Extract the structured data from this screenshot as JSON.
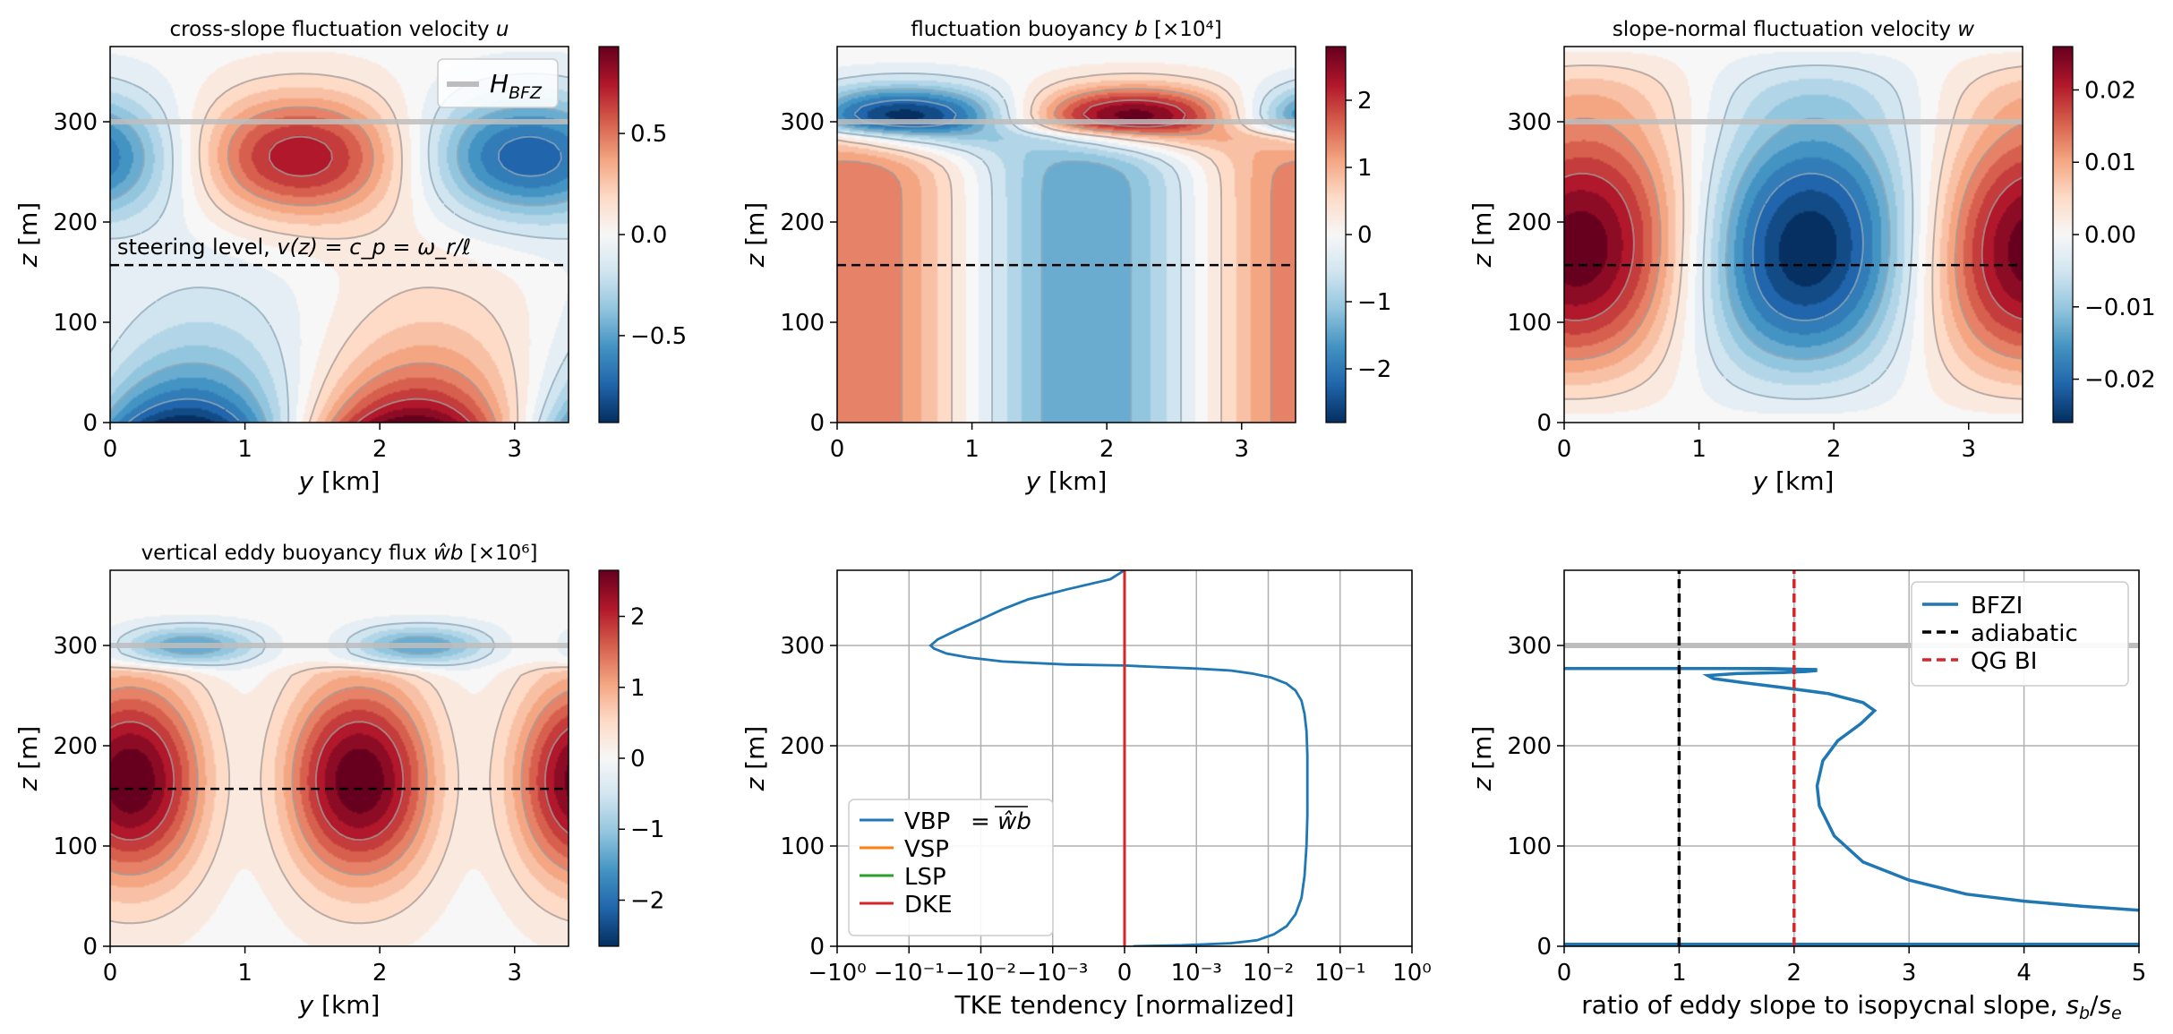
{
  "chart_data": [
    {
      "id": "u",
      "type": "heatmap",
      "title": "cross-slope fluctuation velocity u",
      "title_main": "cross-slope fluctuation velocity ",
      "title_var": "u",
      "xlabel": "y [km]",
      "ylabel": "z [m]",
      "xlim": [
        0,
        3.4
      ],
      "ylim": [
        0,
        375
      ],
      "xticks": [
        "0",
        "1",
        "2",
        "3"
      ],
      "yticks": [
        "0",
        "100",
        "200",
        "300"
      ],
      "colorbar_ticks": [
        "0.5",
        "0.0",
        "−0.5"
      ],
      "colorbar_tick_values": [
        0.5,
        0.0,
        -0.5
      ],
      "colorbar_range": [
        -0.93,
        0.93
      ],
      "colormap": "RdBu_r",
      "legend": {
        "entry": "H_BFZ",
        "label_main": "H",
        "label_sub": "BFZ",
        "placement": "top-right"
      },
      "annotation": "steering level, v(z) = c_p = ω_r/ℓ",
      "annotation_text": "steering level, ",
      "annotation_math": "v(z) = c_p = ω_r/ℓ",
      "steering_level_z": 157,
      "h_bfz_z": 300
    },
    {
      "id": "b",
      "type": "heatmap",
      "title": "fluctuation buoyancy b [×10⁴]",
      "title_main": "fluctuation buoyancy ",
      "title_var": "b",
      "title_tail": " [×10⁴]",
      "xlabel": "y [km]",
      "ylabel": "z [m]",
      "xlim": [
        0,
        3.4
      ],
      "ylim": [
        0,
        375
      ],
      "xticks": [
        "0",
        "1",
        "2",
        "3"
      ],
      "yticks": [
        "0",
        "100",
        "200",
        "300"
      ],
      "colorbar_ticks": [
        "2",
        "1",
        "0",
        "−1",
        "−2"
      ],
      "colorbar_tick_values": [
        2,
        1,
        0,
        -1,
        -2
      ],
      "colorbar_range": [
        -2.8,
        2.8
      ],
      "colormap": "RdBu_r",
      "steering_level_z": 157,
      "h_bfz_z": 300
    },
    {
      "id": "w",
      "type": "heatmap",
      "title": "slope-normal fluctuation velocity w",
      "title_main": "slope-normal fluctuation velocity ",
      "title_var": "w",
      "xlabel": "y [km]",
      "ylabel": "z [m]",
      "xlim": [
        0,
        3.4
      ],
      "ylim": [
        0,
        375
      ],
      "xticks": [
        "0",
        "1",
        "2",
        "3"
      ],
      "yticks": [
        "0",
        "100",
        "200",
        "300"
      ],
      "colorbar_ticks": [
        "0.02",
        "0.01",
        "0.00",
        "−0.01",
        "−0.02"
      ],
      "colorbar_tick_values": [
        0.02,
        0.01,
        0.0,
        -0.01,
        -0.02
      ],
      "colorbar_range": [
        -0.026,
        0.026
      ],
      "colormap": "RdBu_r",
      "steering_level_z": 157,
      "h_bfz_z": 300
    },
    {
      "id": "wb",
      "type": "heatmap",
      "title": "vertical eddy buoyancy flux ŵb [×10⁶]",
      "title_main": "vertical eddy buoyancy flux ",
      "title_var": "ŵb",
      "title_tail": " [×10⁶]",
      "xlabel": "y [km]",
      "ylabel": "z [m]",
      "xlim": [
        0,
        3.4
      ],
      "ylim": [
        0,
        375
      ],
      "xticks": [
        "0",
        "1",
        "2",
        "3"
      ],
      "yticks": [
        "0",
        "100",
        "200",
        "300"
      ],
      "colorbar_ticks": [
        "2",
        "1",
        "0",
        "−1",
        "−2"
      ],
      "colorbar_tick_values": [
        2,
        1,
        0,
        -1,
        -2
      ],
      "colorbar_range": [
        -2.65,
        2.65
      ],
      "colormap": "RdBu_r",
      "steering_level_z": 157,
      "h_bfz_z": 300
    },
    {
      "id": "tke",
      "type": "line",
      "xlabel": "TKE tendency [normalized]",
      "ylabel": "z [m]",
      "xscale": "symlog",
      "xticks": [
        "−10⁰",
        "−10⁻¹",
        "−10⁻²",
        "−10⁻³",
        "0",
        "10⁻³",
        "10⁻²",
        "10⁻¹",
        "10⁰"
      ],
      "xtick_values": [
        -1,
        -0.1,
        -0.01,
        -0.001,
        0,
        0.001,
        0.01,
        0.1,
        1
      ],
      "ylim": [
        0,
        375
      ],
      "yticks": [
        "0",
        "100",
        "200",
        "300"
      ],
      "grid": true,
      "legend": {
        "placement": "lower-left",
        "entries": [
          {
            "label": "VBP",
            "tail": "= ŵb (overbar)",
            "color": "#1f77b4"
          },
          {
            "label": "VSP",
            "color": "#ff7f0e"
          },
          {
            "label": "LSP",
            "color": "#2ca02c"
          },
          {
            "label": "DKE",
            "color": "#d62728"
          }
        ]
      },
      "series": [
        {
          "name": "VBP",
          "color": "#1f77b4",
          "points": [
            [
              0.00012,
              0
            ],
            [
              0.0008,
              1
            ],
            [
              0.003,
              3
            ],
            [
              0.007,
              6
            ],
            [
              0.012,
              12
            ],
            [
              0.018,
              20
            ],
            [
              0.024,
              32
            ],
            [
              0.029,
              48
            ],
            [
              0.032,
              70
            ],
            [
              0.034,
              100
            ],
            [
              0.035,
              130
            ],
            [
              0.035,
              160
            ],
            [
              0.035,
              190
            ],
            [
              0.034,
              215
            ],
            [
              0.032,
              232
            ],
            [
              0.029,
              245
            ],
            [
              0.024,
              255
            ],
            [
              0.018,
              262
            ],
            [
              0.011,
              268
            ],
            [
              0.006,
              272
            ],
            [
              0.003,
              275
            ],
            [
              0.001,
              277
            ],
            [
              0.0003,
              279
            ],
            [
              0,
              280
            ],
            [
              -0.0008,
              281
            ],
            [
              -0.005,
              284
            ],
            [
              -0.015,
              288
            ],
            [
              -0.03,
              292
            ],
            [
              -0.045,
              297
            ],
            [
              -0.05,
              300
            ],
            [
              -0.04,
              306
            ],
            [
              -0.022,
              315
            ],
            [
              -0.01,
              326
            ],
            [
              -0.005,
              336
            ],
            [
              -0.0022,
              346
            ],
            [
              -0.0008,
              356
            ],
            [
              -0.0002,
              366
            ],
            [
              0,
              375
            ]
          ]
        },
        {
          "name": "VSP",
          "color": "#ff7f0e",
          "points": [
            [
              0,
              0
            ],
            [
              0,
              375
            ]
          ]
        },
        {
          "name": "LSP",
          "color": "#2ca02c",
          "points": [
            [
              0,
              0
            ],
            [
              0,
              375
            ]
          ]
        },
        {
          "name": "DKE",
          "color": "#d62728",
          "points": [
            [
              0,
              0
            ],
            [
              0,
              375
            ]
          ]
        }
      ]
    },
    {
      "id": "ratio",
      "type": "line",
      "xlabel": "ratio of eddy slope to isopycnal slope, s_b/s_e",
      "xlabel_main": "ratio of eddy slope to isopycnal slope, ",
      "xlabel_math": "s_b/s_e",
      "ylabel": "z [m]",
      "xlim": [
        0,
        5
      ],
      "ylim": [
        0,
        375
      ],
      "xticks": [
        "0",
        "1",
        "2",
        "3",
        "4",
        "5"
      ],
      "yticks": [
        "0",
        "100",
        "200",
        "300"
      ],
      "grid": true,
      "legend": {
        "placement": "top-right",
        "entries": [
          {
            "label": "BFZI",
            "color": "#1f77b4",
            "style": "solid"
          },
          {
            "label": "adiabatic",
            "color": "#000000",
            "style": "dashed"
          },
          {
            "label": "QG BI",
            "color": "#d62728",
            "style": "dashed"
          }
        ]
      },
      "h_bfz_z": 300,
      "series": [
        {
          "name": "BFZI",
          "color": "#1f77b4",
          "points": [
            [
              0,
              2
            ],
            [
              5,
              2
            ]
          ]
        },
        {
          "name": "BFZI",
          "color": "#1f77b4",
          "points": [
            [
              5,
              36
            ],
            [
              4.5,
              40
            ],
            [
              4.0,
              45
            ],
            [
              3.5,
              52
            ],
            [
              3.0,
              66
            ],
            [
              2.6,
              84
            ],
            [
              2.35,
              110
            ],
            [
              2.22,
              140
            ],
            [
              2.2,
              160
            ],
            [
              2.25,
              185
            ],
            [
              2.38,
              205
            ],
            [
              2.58,
              222
            ],
            [
              2.7,
              235
            ],
            [
              2.6,
              243
            ],
            [
              2.3,
              252
            ],
            [
              1.9,
              258
            ],
            [
              1.55,
              263
            ],
            [
              1.3,
              267
            ],
            [
              1.25,
              270
            ],
            [
              1.5,
              272
            ],
            [
              1.9,
              273
            ],
            [
              2.1,
              274
            ],
            [
              2.2,
              275
            ],
            [
              2.15,
              276
            ],
            [
              1.8,
              277
            ],
            [
              1.2,
              277
            ],
            [
              0.6,
              277
            ],
            [
              0,
              277
            ],
            [
              0.5,
              277
            ],
            [
              1.5,
              277
            ],
            [
              2.2,
              276
            ]
          ]
        },
        {
          "name": "adiabatic",
          "color": "#000000",
          "points": [
            [
              1,
              0
            ],
            [
              1,
              375
            ]
          ]
        },
        {
          "name": "QG BI",
          "color": "#d62728",
          "points": [
            [
              2,
              0
            ],
            [
              2,
              375
            ]
          ]
        }
      ]
    }
  ]
}
